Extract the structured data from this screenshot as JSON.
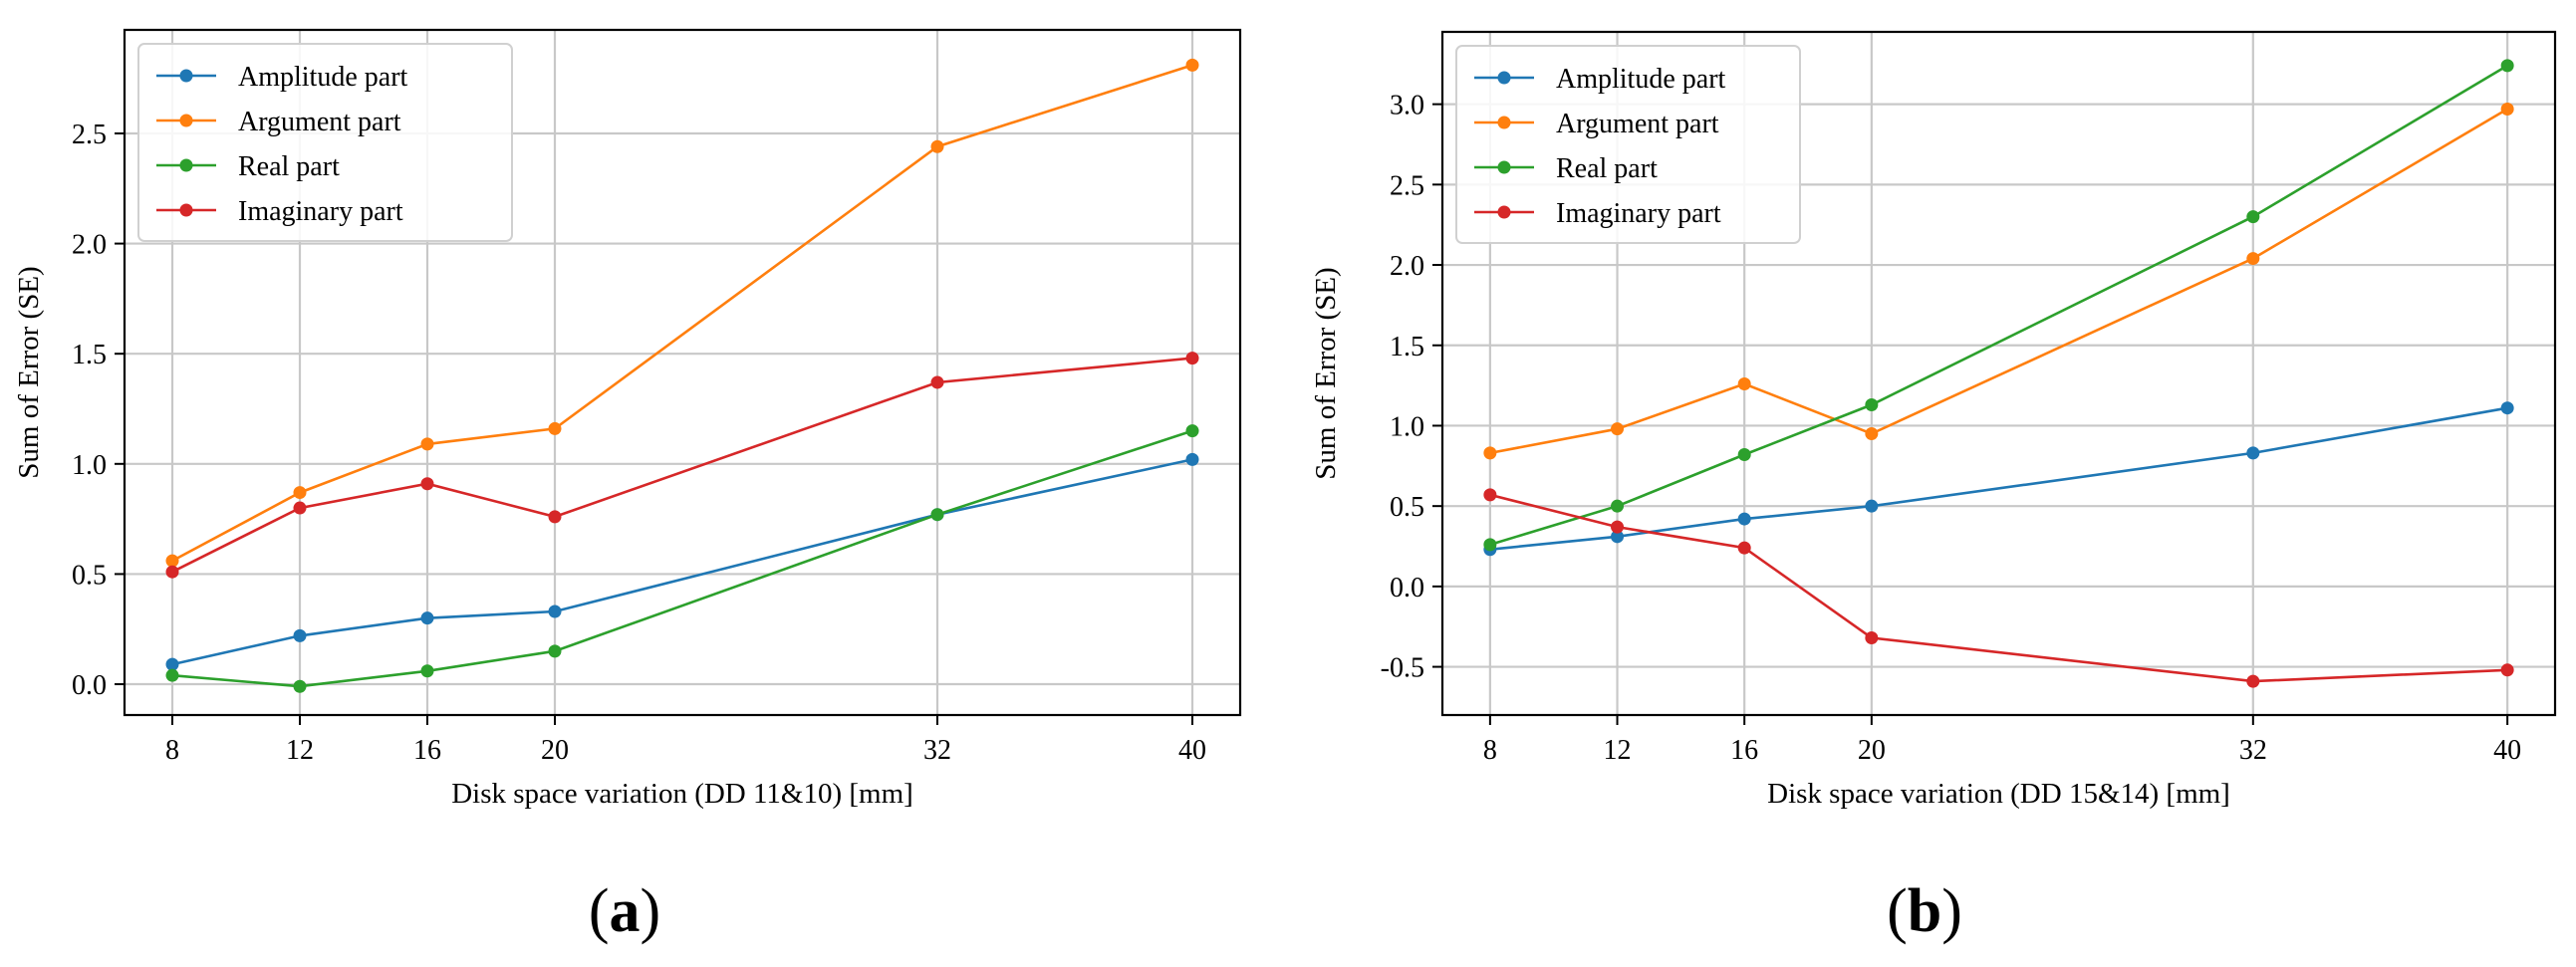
{
  "colors": {
    "amplitude": "#1f77b4",
    "argument": "#ff7f0e",
    "real": "#2ca02c",
    "imaginary": "#d62728",
    "grid": "#c8c8c8",
    "axis": "#000000"
  },
  "chart_data": [
    {
      "type": "line",
      "panel_label": "a",
      "title": "",
      "xlabel": "Disk space variation (DD 11&10) [mm]",
      "ylabel": "Sum of Error (SE)",
      "x": [
        8,
        12,
        16,
        20,
        32,
        40
      ],
      "xticks": [
        "8",
        "12",
        "16",
        "20",
        "32",
        "40"
      ],
      "xlim": [
        6.5,
        41.5
      ],
      "ylim": [
        -0.14,
        2.97
      ],
      "yticks": [
        0.0,
        0.5,
        1.0,
        1.5,
        2.0,
        2.5
      ],
      "ytick_labels": [
        "0.0",
        "0.5",
        "1.0",
        "1.5",
        "2.0",
        "2.5"
      ],
      "grid": true,
      "legend_position": "top-left",
      "series": [
        {
          "name": "Amplitude part",
          "key": "amplitude",
          "values": [
            0.09,
            0.22,
            0.3,
            0.33,
            0.77,
            1.02
          ]
        },
        {
          "name": "Argument part",
          "key": "argument",
          "values": [
            0.56,
            0.87,
            1.09,
            1.16,
            2.44,
            2.81
          ]
        },
        {
          "name": "Real part",
          "key": "real",
          "values": [
            0.04,
            -0.01,
            0.06,
            0.15,
            0.77,
            1.15
          ]
        },
        {
          "name": "Imaginary part",
          "key": "imaginary",
          "values": [
            0.51,
            0.8,
            0.91,
            0.76,
            1.37,
            1.48
          ]
        }
      ]
    },
    {
      "type": "line",
      "panel_label": "b",
      "title": "",
      "xlabel": "Disk space variation (DD 15&14) [mm]",
      "ylabel": "Sum of Error (SE)",
      "x": [
        8,
        12,
        16,
        20,
        32,
        40
      ],
      "xticks": [
        "8",
        "12",
        "16",
        "20",
        "32",
        "40"
      ],
      "xlim": [
        6.5,
        41.5
      ],
      "ylim": [
        -0.8,
        3.45
      ],
      "yticks": [
        -0.5,
        0.0,
        0.5,
        1.0,
        1.5,
        2.0,
        2.5,
        3.0
      ],
      "ytick_labels": [
        "-0.5",
        "0.0",
        "0.5",
        "1.0",
        "1.5",
        "2.0",
        "2.5",
        "3.0"
      ],
      "grid": true,
      "legend_position": "top-left",
      "series": [
        {
          "name": "Amplitude part",
          "key": "amplitude",
          "values": [
            0.23,
            0.31,
            0.42,
            0.5,
            0.83,
            1.11
          ]
        },
        {
          "name": "Argument part",
          "key": "argument",
          "values": [
            0.83,
            0.98,
            1.26,
            0.95,
            2.04,
            2.97
          ]
        },
        {
          "name": "Real part",
          "key": "real",
          "values": [
            0.26,
            0.5,
            0.82,
            1.13,
            2.3,
            3.24
          ]
        },
        {
          "name": "Imaginary part",
          "key": "imaginary",
          "values": [
            0.57,
            0.37,
            0.24,
            -0.32,
            -0.59,
            -0.52
          ]
        }
      ]
    }
  ]
}
